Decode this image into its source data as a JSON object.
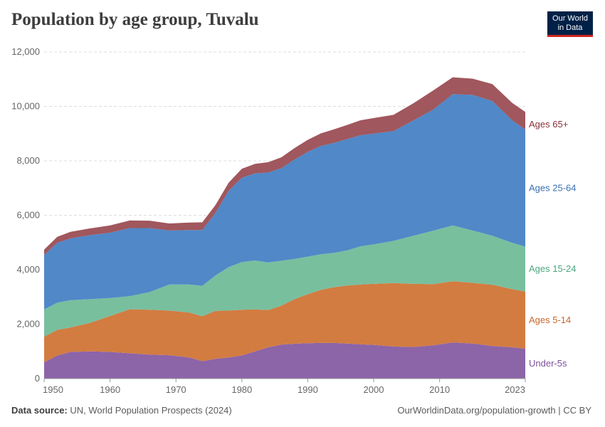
{
  "header": {
    "title": "Population by age group, Tuvalu"
  },
  "logo": {
    "line1": "Our World",
    "line2": "in Data"
  },
  "footer": {
    "source_label": "Data source:",
    "source_text": "UN, World Population Prospects (2024)",
    "credit": "OurWorldinData.org/population-growth | CC BY"
  },
  "chart_data": {
    "type": "area",
    "stacked": true,
    "title": "Population by age group, Tuvalu",
    "xlabel": "",
    "ylabel": "",
    "xlim": [
      1950,
      2023
    ],
    "ylim": [
      0,
      12000
    ],
    "x_ticks": [
      1950,
      1960,
      1970,
      1980,
      1990,
      2000,
      2010,
      2023
    ],
    "y_ticks": [
      0,
      2000,
      4000,
      6000,
      8000,
      10000,
      12000
    ],
    "y_tick_labels": [
      "0",
      "2,000",
      "4,000",
      "6,000",
      "8,000",
      "10,000",
      "12,000"
    ],
    "grid": true,
    "x": [
      1950,
      1952,
      1954,
      1957,
      1960,
      1963,
      1966,
      1969,
      1972,
      1974,
      1976,
      1978,
      1980,
      1982,
      1984,
      1986,
      1988,
      1990,
      1992,
      1994,
      1996,
      1998,
      2000,
      2003,
      2006,
      2009,
      2012,
      2015,
      2018,
      2021,
      2023
    ],
    "series": [
      {
        "name": "Under-5s",
        "color": "#8c64a8",
        "values": [
          600,
          850,
          980,
          1000,
          980,
          930,
          880,
          860,
          780,
          640,
          730,
          780,
          850,
          1000,
          1150,
          1250,
          1280,
          1300,
          1310,
          1310,
          1290,
          1260,
          1240,
          1180,
          1160,
          1220,
          1330,
          1290,
          1200,
          1150,
          1100
        ]
      },
      {
        "name": "Ages 5-14",
        "color": "#d27c41",
        "values": [
          940,
          940,
          900,
          1050,
          1320,
          1620,
          1650,
          1640,
          1650,
          1650,
          1760,
          1720,
          1680,
          1540,
          1370,
          1430,
          1640,
          1800,
          1950,
          2050,
          2130,
          2200,
          2240,
          2330,
          2320,
          2250,
          2250,
          2230,
          2250,
          2140,
          2100
        ]
      },
      {
        "name": "Ages 15-24",
        "color": "#78bf9e",
        "values": [
          1000,
          1000,
          1000,
          870,
          660,
          480,
          650,
          960,
          1030,
          1120,
          1300,
          1600,
          1750,
          1800,
          1750,
          1650,
          1480,
          1380,
          1310,
          1260,
          1290,
          1400,
          1450,
          1550,
          1770,
          1960,
          2050,
          1920,
          1800,
          1700,
          1650
        ]
      },
      {
        "name": "Ages 25-64",
        "color": "#5088c8",
        "values": [
          2000,
          2200,
          2270,
          2350,
          2400,
          2500,
          2350,
          1980,
          2000,
          2050,
          2300,
          2800,
          3100,
          3200,
          3300,
          3400,
          3650,
          3850,
          3980,
          4040,
          4090,
          4080,
          4070,
          4030,
          4230,
          4450,
          4820,
          4980,
          4950,
          4500,
          4300
        ]
      },
      {
        "name": "Ages 65+",
        "color": "#a0575d",
        "values": [
          200,
          220,
          240,
          250,
          270,
          280,
          270,
          260,
          270,
          280,
          290,
          300,
          330,
          350,
          380,
          400,
          420,
          440,
          460,
          500,
          520,
          550,
          570,
          600,
          630,
          700,
          620,
          600,
          620,
          640,
          650
        ]
      }
    ],
    "end_labels": [
      {
        "name": "Under-5s",
        "text": "Under-5s",
        "color": "#7d4f9c"
      },
      {
        "name": "Ages 5-14",
        "text": "Ages 5-14",
        "color": "#c5672c"
      },
      {
        "name": "Ages 15-24",
        "text": "Ages 15-24",
        "color": "#4ca57d"
      },
      {
        "name": "Ages 25-64",
        "text": "Ages 25-64",
        "color": "#3a6fb3"
      },
      {
        "name": "Ages 65+",
        "text": "Ages 65+",
        "color": "#883039"
      }
    ]
  }
}
